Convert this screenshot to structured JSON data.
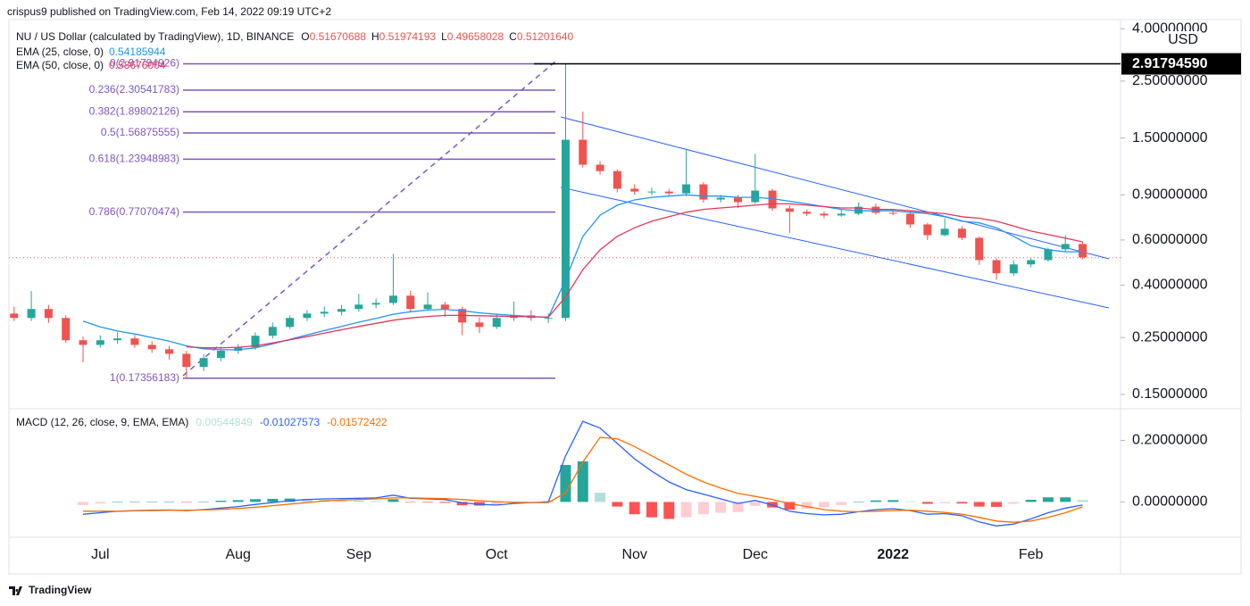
{
  "header": {
    "author_line": "crispus9 published on TradingView.com, Feb 14, 2022 09:19 UTC+2"
  },
  "footer": {
    "brand": "TradingView"
  },
  "chart_data": [
    {
      "type": "candlestick",
      "title": "NU / US Dollar (calculated by TradingView), 1D, BINANCE",
      "ohlc_legend": [
        {
          "prefix": "O",
          "value": 0.51670688
        },
        {
          "prefix": "H",
          "value": 0.51974193
        },
        {
          "prefix": "L",
          "value": 0.49658028
        },
        {
          "prefix": "C",
          "value": {
            "value": 0.5120164,
            "label": "0.51201640"
          }
        }
      ],
      "categories": [
        null,
        null,
        null,
        null,
        null,
        "Jul",
        null,
        null,
        null,
        null,
        null,
        null,
        null,
        "Aug",
        null,
        null,
        null,
        null,
        null,
        null,
        "Sep",
        null,
        null,
        null,
        null,
        null,
        null,
        null,
        "Oct",
        null,
        null,
        null,
        null,
        null,
        null,
        null,
        "Nov",
        null,
        null,
        null,
        null,
        null,
        null,
        "Dec",
        null,
        null,
        null,
        null,
        null,
        null,
        null,
        "2022",
        null,
        null,
        null,
        null,
        null,
        null,
        null,
        "Feb",
        null,
        null,
        null
      ],
      "open": [
        0.31,
        0.298,
        0.323,
        0.298,
        0.244,
        0.234,
        0.244,
        0.248,
        0.234,
        0.225,
        0.216,
        0.192,
        0.208,
        0.222,
        0.229,
        0.254,
        0.275,
        0.298,
        0.31,
        0.315,
        0.323,
        0.336,
        0.341,
        0.364,
        0.323,
        0.336,
        0.323,
        0.286,
        0.275,
        0.298,
        0.305,
        0.298,
        0.298,
        1.476,
        1.18,
        1.114,
        0.951,
        0.927,
        0.927,
        0.912,
        0.989,
        0.863,
        0.877,
        0.843,
        0.935,
        0.797,
        0.773,
        0.76,
        0.748,
        0.76,
        0.809,
        0.766,
        0.76,
        0.69,
        0.627,
        0.664,
        0.612,
        0.501,
        0.445,
        0.482,
        0.501,
        0.552,
        0.579
      ],
      "high": [
        0.33,
        0.38,
        0.335,
        0.305,
        0.252,
        0.255,
        0.262,
        0.256,
        0.242,
        0.232,
        0.222,
        0.215,
        0.23,
        0.236,
        0.262,
        0.286,
        0.305,
        0.32,
        0.33,
        0.335,
        0.37,
        0.355,
        0.53,
        0.38,
        0.375,
        0.345,
        0.33,
        0.3,
        0.31,
        0.345,
        0.32,
        0.31,
        2.918,
        1.9,
        1.22,
        1.13,
        0.99,
        0.96,
        0.95,
        1.36,
        1.01,
        0.9,
        0.9,
        1.3,
        0.95,
        0.82,
        0.79,
        0.775,
        0.79,
        0.84,
        0.83,
        0.79,
        0.77,
        0.7,
        0.73,
        0.68,
        0.62,
        0.51,
        0.5,
        0.51,
        0.56,
        0.627,
        0.59
      ],
      "low": [
        0.29,
        0.29,
        0.285,
        0.238,
        0.2,
        0.228,
        0.236,
        0.228,
        0.218,
        0.205,
        0.174,
        0.185,
        0.202,
        0.216,
        0.224,
        0.248,
        0.27,
        0.29,
        0.3,
        0.305,
        0.315,
        0.325,
        0.335,
        0.315,
        0.318,
        0.3,
        0.255,
        0.26,
        0.27,
        0.29,
        0.29,
        0.285,
        0.29,
        1.15,
        1.08,
        0.92,
        0.9,
        0.9,
        0.89,
        0.89,
        0.84,
        0.84,
        0.8,
        0.83,
        0.78,
        0.64,
        0.745,
        0.73,
        0.74,
        0.75,
        0.755,
        0.75,
        0.67,
        0.6,
        0.62,
        0.6,
        0.48,
        0.42,
        0.435,
        0.47,
        0.495,
        0.54,
        0.505
      ],
      "close": [
        0.298,
        0.323,
        0.298,
        0.244,
        0.234,
        0.244,
        0.248,
        0.234,
        0.225,
        0.216,
        0.192,
        0.208,
        0.222,
        0.229,
        0.254,
        0.275,
        0.298,
        0.31,
        0.315,
        0.323,
        0.336,
        0.341,
        0.364,
        0.323,
        0.336,
        0.323,
        0.286,
        0.275,
        0.298,
        0.305,
        0.298,
        0.298,
        1.476,
        1.18,
        1.114,
        0.951,
        0.927,
        0.927,
        0.912,
        0.989,
        0.863,
        0.877,
        0.843,
        0.935,
        0.797,
        0.773,
        0.76,
        0.748,
        0.76,
        0.809,
        0.766,
        0.76,
        0.69,
        0.627,
        0.664,
        0.612,
        0.501,
        0.445,
        0.482,
        0.501,
        0.552,
        0.579,
        0.513
      ],
      "up_color": "#26a69a",
      "down_color": "#ef5350",
      "series": [
        {
          "name": "EMA (25, close, 0)",
          "color": "#2196f3",
          "last": 0.54185944,
          "values": [
            null,
            null,
            null,
            null,
            0.29,
            0.275,
            0.265,
            0.258,
            0.25,
            0.242,
            0.232,
            0.226,
            0.224,
            0.224,
            0.228,
            0.236,
            0.246,
            0.256,
            0.266,
            0.276,
            0.287,
            0.297,
            0.308,
            0.315,
            0.32,
            0.322,
            0.318,
            0.312,
            0.308,
            0.305,
            0.302,
            0.3,
            0.42,
            0.62,
            0.75,
            0.82,
            0.86,
            0.88,
            0.89,
            0.9,
            0.89,
            0.89,
            0.88,
            0.88,
            0.87,
            0.85,
            0.83,
            0.81,
            0.79,
            0.78,
            0.78,
            0.78,
            0.77,
            0.76,
            0.74,
            0.71,
            0.7,
            0.67,
            0.62,
            0.57,
            0.55,
            0.54,
            0.54
          ]
        },
        {
          "name": "EMA (50, close, 0)",
          "color": "#e5375b",
          "last": 0.58676004,
          "values": [
            null,
            null,
            null,
            null,
            null,
            null,
            null,
            null,
            null,
            null,
            0.23,
            0.228,
            0.228,
            0.229,
            0.232,
            0.238,
            0.245,
            0.252,
            0.26,
            0.268,
            0.276,
            0.284,
            0.292,
            0.298,
            0.302,
            0.305,
            0.305,
            0.304,
            0.303,
            0.302,
            0.301,
            0.3,
            0.36,
            0.46,
            0.55,
            0.62,
            0.67,
            0.71,
            0.74,
            0.77,
            0.79,
            0.8,
            0.81,
            0.82,
            0.83,
            0.83,
            0.82,
            0.81,
            0.8,
            0.8,
            0.79,
            0.79,
            0.78,
            0.77,
            0.76,
            0.74,
            0.73,
            0.71,
            0.68,
            0.65,
            0.63,
            0.61,
            0.59
          ]
        }
      ],
      "fib_color": "#7e57c2",
      "fib_levels": [
        {
          "value": 2.91794926,
          "label": "0(2.91794926)"
        },
        {
          "value": 2.30541783,
          "label": "0.236(2.30541783)"
        },
        {
          "value": 1.89802126,
          "label": "0.382(1.89802126)"
        },
        {
          "value": 1.56875555,
          "label": "0.5(1.56875555)"
        },
        {
          "value": 1.23948983,
          "label": "0.618(1.23948983)"
        },
        {
          "value": 0.77070474,
          "label": "0.786(0.77070474)"
        },
        {
          "value": 0.17356183,
          "label": "1(0.17356183)"
        }
      ],
      "price_line": {
        "value": 2.9179459,
        "label": "2.91794590"
      },
      "currency": "USD",
      "log_scale": true,
      "grid": false,
      "ylim": [
        0.134,
        4.34
      ],
      "yticks": [
        {
          "value": 4,
          "label": "4.00000000"
        },
        {
          "value": 2.5,
          "label": "2.50000000"
        },
        {
          "value": 1.5,
          "label": "1.50000000"
        },
        {
          "value": 0.9,
          "label": "0.90000000"
        },
        {
          "value": 0.6,
          "label": "0.60000000"
        },
        {
          "value": 0.4,
          "label": "0.40000000"
        },
        {
          "value": 0.25,
          "label": "0.25000000"
        },
        {
          "value": 0.15,
          "label": "0.15000000"
        }
      ]
    },
    {
      "type": "macd",
      "title": "MACD (12, 26, close, 9, EMA, EMA)",
      "histogram": {
        "colors": [
          "#26a69a",
          "#b2dfdb",
          "#ffcdd2",
          "#ff5252"
        ],
        "last": 0.00544849,
        "values": [
          null,
          null,
          null,
          null,
          -0.01,
          -0.005,
          0.0,
          0.001,
          0.001,
          0.001,
          -0.001,
          0.001,
          0.004,
          0.006,
          0.009,
          0.01,
          0.011,
          0.01,
          0.007,
          0.005,
          0.004,
          0.003,
          0.009,
          -0.001,
          -0.002,
          -0.003,
          -0.011,
          -0.012,
          -0.011,
          -0.004,
          0.0,
          0.002,
          0.12,
          0.132,
          0.03,
          -0.015,
          -0.04,
          -0.05,
          -0.055,
          -0.05,
          -0.04,
          -0.035,
          -0.033,
          -0.013,
          -0.018,
          -0.025,
          -0.023,
          -0.017,
          -0.01,
          0.0,
          0.005,
          0.006,
          0.002,
          -0.006,
          -0.004,
          -0.005,
          -0.015,
          -0.016,
          -0.006,
          0.007,
          0.015,
          0.015,
          0.006
        ]
      },
      "series": [
        {
          "color": "#2962ff",
          "last": -0.01027573,
          "values": [
            null,
            null,
            null,
            null,
            -0.04,
            -0.035,
            -0.03,
            -0.028,
            -0.027,
            -0.026,
            -0.028,
            -0.025,
            -0.02,
            -0.015,
            -0.008,
            -0.002,
            0.004,
            0.008,
            0.01,
            0.011,
            0.012,
            0.013,
            0.022,
            0.012,
            0.01,
            0.008,
            -0.003,
            -0.008,
            -0.01,
            -0.005,
            -0.002,
            0.0,
            0.15,
            0.262,
            0.24,
            0.19,
            0.14,
            0.1,
            0.065,
            0.04,
            0.025,
            0.01,
            -0.005,
            0.005,
            -0.01,
            -0.03,
            -0.038,
            -0.042,
            -0.04,
            -0.032,
            -0.025,
            -0.022,
            -0.028,
            -0.04,
            -0.038,
            -0.045,
            -0.065,
            -0.078,
            -0.072,
            -0.055,
            -0.035,
            -0.02,
            -0.01
          ]
        },
        {
          "color": "#ff6d00",
          "last": -0.01572422,
          "values": [
            null,
            null,
            null,
            null,
            -0.03,
            -0.03,
            -0.03,
            -0.029,
            -0.028,
            -0.027,
            -0.027,
            -0.026,
            -0.024,
            -0.021,
            -0.017,
            -0.012,
            -0.007,
            -0.002,
            0.003,
            0.006,
            0.008,
            0.01,
            0.013,
            0.013,
            0.012,
            0.011,
            0.008,
            0.004,
            0.001,
            -0.001,
            -0.002,
            -0.002,
            0.03,
            0.13,
            0.21,
            0.205,
            0.18,
            0.15,
            0.12,
            0.09,
            0.065,
            0.045,
            0.028,
            0.018,
            0.008,
            -0.005,
            -0.015,
            -0.025,
            -0.03,
            -0.032,
            -0.03,
            -0.028,
            -0.027,
            -0.03,
            -0.034,
            -0.04,
            -0.05,
            -0.062,
            -0.066,
            -0.062,
            -0.05,
            -0.035,
            -0.016
          ]
        }
      ],
      "ylim": [
        -0.109,
        0.297
      ],
      "yticks": [
        {
          "value": 0.2,
          "label": "0.20000000"
        },
        {
          "value": 0,
          "label": "0.00000000"
        }
      ]
    }
  ]
}
